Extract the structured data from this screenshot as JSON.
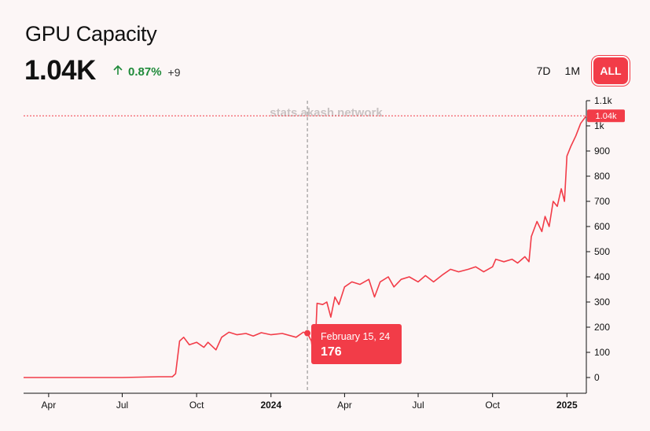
{
  "header": {
    "title": "GPU Capacity",
    "value": "1.04K",
    "change_pct": "0.87%",
    "change_abs": "+9"
  },
  "range": {
    "options": [
      "7D",
      "1M",
      "ALL"
    ],
    "selected": "ALL"
  },
  "watermark": "stats.akash.network",
  "tooltip": {
    "date": "February 15, 24",
    "value": "176"
  },
  "current_label": "1.04k",
  "colors": {
    "line": "#f23c48",
    "positive": "#1f8a3a",
    "background": "#fcf6f6"
  },
  "chart_data": {
    "type": "line",
    "title": "GPU Capacity",
    "x_tick_labels": [
      "Apr",
      "Jul",
      "Oct",
      "2024",
      "Apr",
      "Jul",
      "Oct",
      "2025"
    ],
    "y_tick_labels": [
      "0",
      "100",
      "200",
      "300",
      "400",
      "500",
      "600",
      "700",
      "800",
      "900",
      "1k",
      "1.1k"
    ],
    "ylim": [
      0,
      1100
    ],
    "xlim": [
      "2023-03-01",
      "2025-01-25"
    ],
    "series": [
      {
        "values": [
          [
            "2023-03-01",
            0
          ],
          [
            "2023-05-01",
            0
          ],
          [
            "2023-07-01",
            0
          ],
          [
            "2023-08-15",
            3
          ],
          [
            "2023-09-01",
            3
          ],
          [
            "2023-09-05",
            15
          ],
          [
            "2023-09-10",
            145
          ],
          [
            "2023-09-15",
            160
          ],
          [
            "2023-09-22",
            130
          ],
          [
            "2023-10-01",
            140
          ],
          [
            "2023-10-10",
            120
          ],
          [
            "2023-10-15",
            140
          ],
          [
            "2023-10-25",
            110
          ],
          [
            "2023-11-01",
            160
          ],
          [
            "2023-11-10",
            180
          ],
          [
            "2023-11-20",
            170
          ],
          [
            "2023-12-01",
            175
          ],
          [
            "2023-12-10",
            165
          ],
          [
            "2023-12-20",
            178
          ],
          [
            "2024-01-01",
            170
          ],
          [
            "2024-01-15",
            175
          ],
          [
            "2024-02-01",
            160
          ],
          [
            "2024-02-10",
            180
          ],
          [
            "2024-02-15",
            176
          ],
          [
            "2024-02-20",
            145
          ],
          [
            "2024-02-22",
            90
          ],
          [
            "2024-02-25",
            150
          ],
          [
            "2024-02-27",
            295
          ],
          [
            "2024-03-05",
            290
          ],
          [
            "2024-03-10",
            300
          ],
          [
            "2024-03-15",
            240
          ],
          [
            "2024-03-20",
            320
          ],
          [
            "2024-03-25",
            290
          ],
          [
            "2024-04-01",
            360
          ],
          [
            "2024-04-10",
            380
          ],
          [
            "2024-04-20",
            370
          ],
          [
            "2024-05-01",
            390
          ],
          [
            "2024-05-08",
            320
          ],
          [
            "2024-05-15",
            380
          ],
          [
            "2024-05-25",
            400
          ],
          [
            "2024-06-01",
            360
          ],
          [
            "2024-06-10",
            390
          ],
          [
            "2024-06-20",
            400
          ],
          [
            "2024-07-01",
            380
          ],
          [
            "2024-07-10",
            405
          ],
          [
            "2024-07-20",
            380
          ],
          [
            "2024-08-01",
            410
          ],
          [
            "2024-08-10",
            430
          ],
          [
            "2024-08-20",
            420
          ],
          [
            "2024-09-01",
            430
          ],
          [
            "2024-09-10",
            440
          ],
          [
            "2024-09-20",
            420
          ],
          [
            "2024-10-01",
            440
          ],
          [
            "2024-10-05",
            470
          ],
          [
            "2024-10-15",
            460
          ],
          [
            "2024-10-25",
            470
          ],
          [
            "2024-11-01",
            455
          ],
          [
            "2024-11-10",
            480
          ],
          [
            "2024-11-15",
            460
          ],
          [
            "2024-11-18",
            560
          ],
          [
            "2024-11-25",
            620
          ],
          [
            "2024-12-01",
            580
          ],
          [
            "2024-12-05",
            640
          ],
          [
            "2024-12-10",
            600
          ],
          [
            "2024-12-15",
            700
          ],
          [
            "2024-12-20",
            680
          ],
          [
            "2024-12-25",
            750
          ],
          [
            "2024-12-29",
            700
          ],
          [
            "2025-01-01",
            880
          ],
          [
            "2025-01-06",
            920
          ],
          [
            "2025-01-12",
            960
          ],
          [
            "2025-01-18",
            1010
          ],
          [
            "2025-01-25",
            1040
          ]
        ]
      }
    ]
  }
}
